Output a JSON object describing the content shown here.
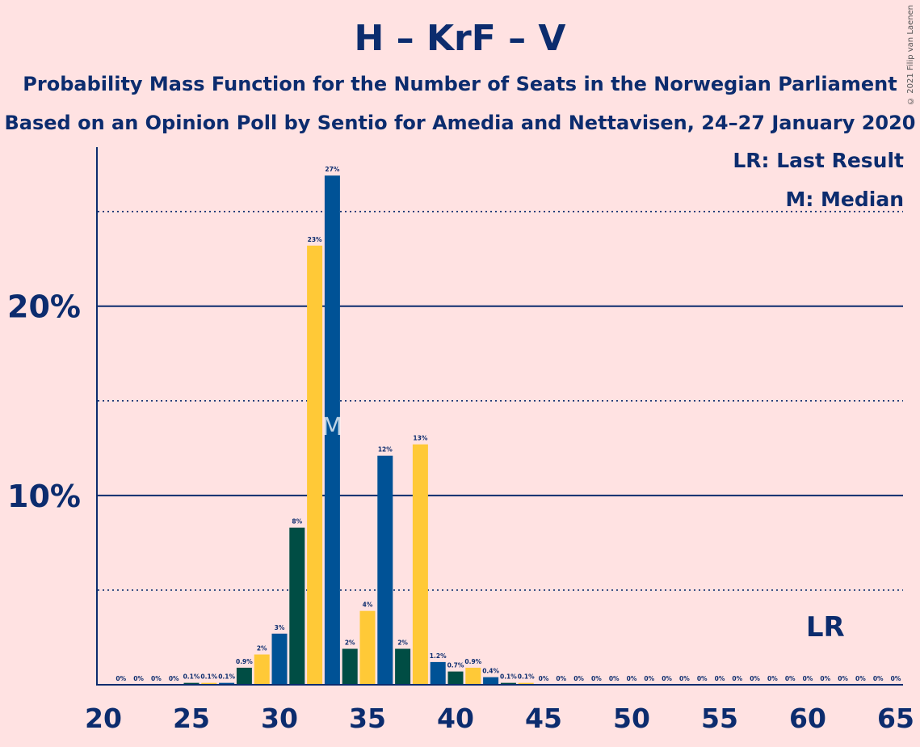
{
  "chart_data": {
    "type": "bar",
    "title": "H – KrF – V",
    "subtitle_line1": "Probability Mass Function for the Number of Seats in the Norwegian Parliament",
    "subtitle_line2": "Based on an Opinion Poll by Sentio for Amedia and Nettavisen, 24–27 January 2020",
    "copyright": "© 2021 Filip van Laenen",
    "legend": [
      "LR: Last Result",
      "M: Median"
    ],
    "last_result_label": "LR",
    "median_label": "M",
    "last_result_seat": 61,
    "median_seat": 33,
    "x": [
      20,
      21,
      22,
      23,
      24,
      25,
      26,
      27,
      28,
      29,
      30,
      31,
      32,
      33,
      34,
      35,
      36,
      37,
      38,
      39,
      40,
      41,
      42,
      43,
      44,
      45,
      46,
      47,
      48,
      49,
      50,
      51,
      52,
      53,
      54,
      55,
      56,
      57,
      58,
      59,
      60,
      61,
      62,
      63,
      64,
      65
    ],
    "values": [
      0,
      0,
      0,
      0,
      0,
      0.1,
      0.1,
      0.1,
      0.9,
      1.6,
      2.7,
      8.3,
      23.2,
      26.9,
      1.9,
      3.9,
      12.1,
      1.9,
      12.7,
      1.2,
      0.7,
      0.9,
      0.4,
      0.1,
      0.1,
      0,
      0,
      0,
      0,
      0,
      0,
      0,
      0,
      0,
      0,
      0,
      0,
      0,
      0,
      0,
      0,
      0,
      0,
      0,
      0,
      0
    ],
    "labels": [
      "",
      "0%",
      "0%",
      "0%",
      "0%",
      "0.1%",
      "0.1%",
      "0.1%",
      "0.9%",
      "2%",
      "3%",
      "8%",
      "23%",
      "27%",
      "2%",
      "4%",
      "12%",
      "2%",
      "13%",
      "1.2%",
      "0.7%",
      "0.9%",
      "0.4%",
      "0.1%",
      "0.1%",
      "0%",
      "0%",
      "0%",
      "0%",
      "0%",
      "0%",
      "0%",
      "0%",
      "0%",
      "0%",
      "0%",
      "0%",
      "0%",
      "0%",
      "0%",
      "0%",
      "0%",
      "0%",
      "0%",
      "0%",
      "0%"
    ],
    "colors": [
      "#FFC937",
      "#005296",
      "#004D44"
    ],
    "ylim": [
      0,
      29
    ],
    "yticks": [
      {
        "value": 10,
        "label": "10%"
      },
      {
        "value": 20,
        "label": "20%"
      }
    ],
    "dotted_lines": [
      5,
      15,
      25
    ],
    "xticks": [
      20,
      25,
      30,
      35,
      40,
      45,
      50,
      55,
      60,
      65
    ],
    "grid": true
  }
}
